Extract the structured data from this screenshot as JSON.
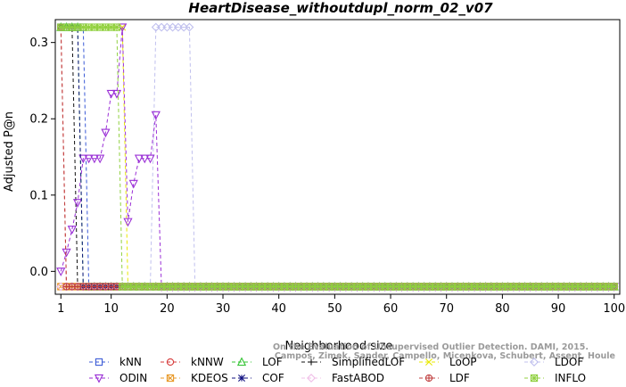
{
  "chart_data": {
    "type": "line",
    "title": "HeartDisease_withoutdupl_norm_02_v07",
    "xlabel": "Neighborhood size",
    "ylabel": "Adjusted P@n",
    "xlim": [
      0,
      101
    ],
    "ylim": [
      -0.03,
      0.33
    ],
    "x_ticks": [
      1,
      10,
      20,
      30,
      40,
      50,
      60,
      70,
      80,
      90,
      100
    ],
    "y_ticks": [
      0.0,
      0.1,
      0.2,
      0.3
    ],
    "x_tick_labels": [
      "1",
      "10",
      "20",
      "30",
      "40",
      "50",
      "60",
      "70",
      "80",
      "90",
      "100"
    ],
    "y_tick_labels": [
      "0.0",
      "0.1",
      "0.2",
      "0.3"
    ],
    "baseline_value": -0.02,
    "series": [
      {
        "name": "kNN",
        "color": "#3a5ad6",
        "marker": "square",
        "points": [
          [
            1,
            0.32
          ],
          [
            2,
            0.32
          ],
          [
            3,
            0.32
          ],
          [
            4,
            0.32
          ],
          [
            5,
            0.32
          ],
          [
            6,
            -0.02
          ]
        ]
      },
      {
        "name": "kNNW",
        "color": "#d63a3a",
        "marker": "circle",
        "points": [
          [
            1,
            0.32
          ],
          [
            2,
            -0.02
          ]
        ]
      },
      {
        "name": "LOF",
        "color": "#35c435",
        "marker": "triangle",
        "points": [
          [
            1,
            0.32
          ],
          [
            2,
            0.32
          ],
          [
            3,
            0.32
          ],
          [
            4,
            0.32
          ],
          [
            5,
            -0.02
          ]
        ]
      },
      {
        "name": "SimplifiedLOF",
        "color": "#111111",
        "marker": "plus",
        "points": [
          [
            1,
            0.32
          ],
          [
            2,
            0.32
          ],
          [
            3,
            0.32
          ],
          [
            4,
            -0.02
          ]
        ]
      },
      {
        "name": "LoOP",
        "color": "#e8e800",
        "marker": "x",
        "points": [
          [
            1,
            0.32
          ],
          [
            2,
            0.32
          ],
          [
            3,
            0.32
          ],
          [
            4,
            0.32
          ],
          [
            5,
            0.32
          ],
          [
            6,
            0.32
          ],
          [
            7,
            0.32
          ],
          [
            8,
            0.32
          ],
          [
            9,
            0.32
          ],
          [
            10,
            0.32
          ],
          [
            11,
            0.32
          ],
          [
            12,
            0.32
          ],
          [
            13,
            -0.02
          ]
        ]
      },
      {
        "name": "LDOF",
        "color": "#c0c0ee",
        "marker": "diamond",
        "points": [
          [
            17,
            -0.02
          ],
          [
            18,
            0.32
          ],
          [
            19,
            0.32
          ],
          [
            20,
            0.32
          ],
          [
            21,
            0.32
          ],
          [
            22,
            0.32
          ],
          [
            23,
            0.32
          ],
          [
            24,
            0.32
          ],
          [
            25,
            -0.02
          ]
        ]
      },
      {
        "name": "ODIN",
        "color": "#9a2fd6",
        "marker": "triangle-down",
        "points": [
          [
            1,
            0.0
          ],
          [
            2,
            0.025
          ],
          [
            3,
            0.055
          ],
          [
            4,
            0.09
          ],
          [
            5,
            0.148
          ],
          [
            6,
            0.148
          ],
          [
            7,
            0.148
          ],
          [
            8,
            0.148
          ],
          [
            9,
            0.182
          ],
          [
            10,
            0.233
          ],
          [
            11,
            0.233
          ],
          [
            12,
            0.32
          ],
          [
            13,
            0.065
          ],
          [
            14,
            0.115
          ],
          [
            15,
            0.148
          ],
          [
            16,
            0.148
          ],
          [
            17,
            0.148
          ],
          [
            18,
            0.205
          ],
          [
            19,
            -0.02
          ]
        ]
      },
      {
        "name": "KDEOS",
        "color": "#e89a2a",
        "marker": "boxed-x",
        "points": [
          [
            1,
            -0.02
          ]
        ]
      },
      {
        "name": "COF",
        "color": "#101080",
        "marker": "star",
        "points": [
          [
            1,
            0.32
          ],
          [
            2,
            0.32
          ],
          [
            3,
            0.32
          ],
          [
            4,
            0.32
          ],
          [
            5,
            -0.02
          ]
        ]
      },
      {
        "name": "FastABOD",
        "color": "#f0c0e8",
        "marker": "diamond",
        "points": [
          [
            1,
            -0.02
          ]
        ]
      },
      {
        "name": "LDF",
        "color": "#c04040",
        "marker": "circle-plus",
        "points": [
          [
            1,
            0.32
          ],
          [
            2,
            -0.02
          ]
        ]
      },
      {
        "name": "INFLO",
        "color": "#90d040",
        "marker": "boxed-star",
        "points": [
          [
            1,
            0.32
          ],
          [
            2,
            0.32
          ],
          [
            3,
            0.32
          ],
          [
            4,
            0.32
          ],
          [
            5,
            0.32
          ],
          [
            6,
            0.32
          ],
          [
            7,
            0.32
          ],
          [
            8,
            0.32
          ],
          [
            9,
            0.32
          ],
          [
            10,
            0.32
          ],
          [
            11,
            0.32
          ],
          [
            12,
            -0.02
          ]
        ]
      }
    ],
    "legend": {
      "placement": "bottom",
      "rows": [
        [
          "kNN",
          "kNNW",
          "LOF",
          "SimplifiedLOF",
          "LoOP",
          "LDOF"
        ],
        [
          "ODIN",
          "KDEOS",
          "COF",
          "FastABOD",
          "LDF",
          "INFLO"
        ]
      ]
    },
    "watermark_lines": [
      "Campos, Zimek, Sander, Campello, Micenkova, Schubert, Assent, Houle",
      "On the Evaluation of Unsupervised Outlier Detection. DAMI, 2015."
    ]
  }
}
